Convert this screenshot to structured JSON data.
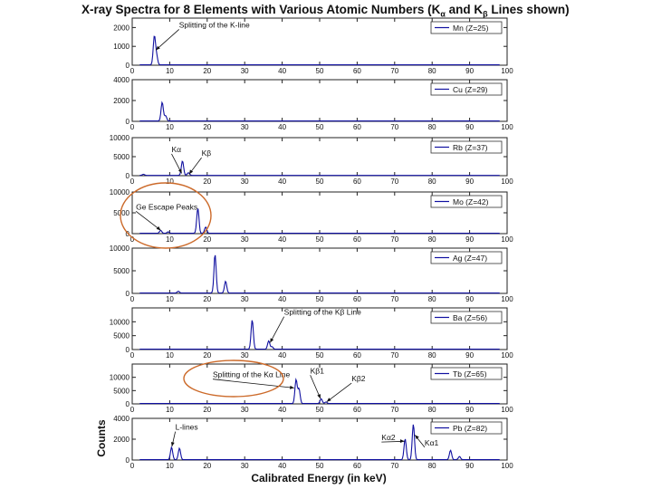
{
  "figure": {
    "title_pre": "X-ray Spectra for 8 Elements with Various Atomic Numbers (K",
    "title_sub1": "α",
    "title_mid": " and K",
    "title_sub2": "β",
    "title_post": " Lines shown)",
    "xlabel": "Calibrated Energy (in keV)",
    "ylabel": "Counts",
    "line_color": "#1010a0",
    "annotation_color": "#cc6a2a"
  },
  "chart_data": [
    {
      "type": "line",
      "legend": "Mn (Z=25)",
      "legend_position": "top-right",
      "xlim": [
        0,
        100
      ],
      "ylim": [
        0,
        2500
      ],
      "xticks": [
        "0",
        "10",
        "20",
        "30",
        "40",
        "50",
        "60",
        "70",
        "80",
        "90",
        "100"
      ],
      "yticks": [
        "0",
        "1000",
        "2000"
      ],
      "peaks": [
        {
          "x": 5.9,
          "y": 1500
        },
        {
          "x": 6.5,
          "y": 450
        }
      ],
      "annotations": [
        {
          "text": "Splitting of the K-line",
          "x": 12.5,
          "y": 2000,
          "arrow_to": [
            6.3,
            800
          ]
        }
      ]
    },
    {
      "type": "line",
      "legend": "Cu (Z=29)",
      "legend_position": "top-right",
      "xlim": [
        0,
        100
      ],
      "ylim": [
        0,
        4000
      ],
      "xticks": [
        "0",
        "10",
        "20",
        "30",
        "40",
        "50",
        "60",
        "70",
        "80",
        "90",
        "100"
      ],
      "yticks": [
        "0",
        "2000",
        "4000"
      ],
      "peaks": [
        {
          "x": 8.0,
          "y": 1800
        },
        {
          "x": 8.9,
          "y": 500
        }
      ],
      "annotations": []
    },
    {
      "type": "line",
      "legend": "Rb (Z=37)",
      "legend_position": "top-right",
      "xlim": [
        0,
        100
      ],
      "ylim": [
        0,
        10000
      ],
      "xticks": [
        "0",
        "10",
        "20",
        "30",
        "40",
        "50",
        "60",
        "70",
        "80",
        "90",
        "100"
      ],
      "yticks": [
        "0",
        "5000",
        "10000"
      ],
      "peaks": [
        {
          "x": 13.4,
          "y": 3800
        },
        {
          "x": 15.0,
          "y": 700
        },
        {
          "x": 3.0,
          "y": 300
        }
      ],
      "annotations": [
        {
          "text": "Kα",
          "x": 10.5,
          "y": 6200,
          "arrow_to": [
            13.2,
            600
          ]
        },
        {
          "text": "Kβ",
          "x": 18.5,
          "y": 5200,
          "arrow_to": [
            15.2,
            400
          ]
        }
      ]
    },
    {
      "type": "line",
      "legend": "Mo (Z=42)",
      "legend_position": "top-right",
      "xlim": [
        0,
        100
      ],
      "ylim": [
        0,
        10000
      ],
      "xticks": [
        "0",
        "10",
        "20",
        "30",
        "40",
        "50",
        "60",
        "70",
        "80",
        "90",
        "100"
      ],
      "yticks": [
        "0",
        "5000",
        "10000"
      ],
      "peaks": [
        {
          "x": 17.5,
          "y": 6000
        },
        {
          "x": 19.6,
          "y": 1500
        },
        {
          "x": 7.6,
          "y": 700
        },
        {
          "x": 9.6,
          "y": 350
        }
      ],
      "annotations": [
        {
          "text": "Ge Escape Peaks",
          "x": 1,
          "y": 5800,
          "arrow_to": [
            7.6,
            800
          ]
        }
      ]
    },
    {
      "type": "line",
      "legend": "Ag (Z=47)",
      "legend_position": "top-right",
      "xlim": [
        0,
        100
      ],
      "ylim": [
        0,
        10000
      ],
      "xticks": [
        "0",
        "10",
        "20",
        "30",
        "40",
        "50",
        "60",
        "70",
        "80",
        "90",
        "100"
      ],
      "yticks": [
        "0",
        "5000",
        "10000"
      ],
      "peaks": [
        {
          "x": 22.1,
          "y": 8500
        },
        {
          "x": 24.9,
          "y": 2600
        },
        {
          "x": 12.3,
          "y": 400
        }
      ],
      "annotations": []
    },
    {
      "type": "line",
      "legend": "Ba (Z=56)",
      "legend_position": "top-right",
      "xlim": [
        0,
        100
      ],
      "ylim": [
        0,
        15000
      ],
      "xticks": [
        "0",
        "10",
        "20",
        "30",
        "40",
        "50",
        "60",
        "70",
        "80",
        "90",
        "100"
      ],
      "yticks": [
        "0",
        "5000",
        "10000"
      ],
      "peaks": [
        {
          "x": 32.0,
          "y": 10500
        },
        {
          "x": 36.4,
          "y": 3000
        },
        {
          "x": 37.3,
          "y": 900
        }
      ],
      "annotations": [
        {
          "text": "Splitting of the Kβ Line",
          "x": 40.5,
          "y": 12500,
          "arrow_to": [
            36.8,
            2500
          ]
        }
      ]
    },
    {
      "type": "line",
      "legend": "Tb (Z=65)",
      "legend_position": "top-right",
      "xlim": [
        0,
        100
      ],
      "ylim": [
        0,
        15000
      ],
      "xticks": [
        "0",
        "10",
        "20",
        "30",
        "40",
        "50",
        "60",
        "70",
        "80",
        "90",
        "100"
      ],
      "yticks": [
        "0",
        "5000",
        "10000"
      ],
      "peaks": [
        {
          "x": 43.7,
          "y": 9000
        },
        {
          "x": 44.5,
          "y": 5500
        },
        {
          "x": 50.4,
          "y": 1800
        },
        {
          "x": 51.7,
          "y": 600
        }
      ],
      "annotations": [
        {
          "text": "Splitting of the Kα Line",
          "x": 21.5,
          "y": 10000,
          "arrow_to": [
            43.2,
            6000
          ]
        },
        {
          "text": "Kβ1",
          "x": 47.5,
          "y": 11500,
          "arrow_to": [
            50.2,
            2000
          ]
        },
        {
          "text": "Kβ2",
          "x": 58.5,
          "y": 8500,
          "arrow_to": [
            51.9,
            800
          ]
        }
      ]
    },
    {
      "type": "line",
      "legend": "Pb (Z=82)",
      "legend_position": "top-right",
      "xlim": [
        0,
        100
      ],
      "ylim": [
        0,
        4000
      ],
      "xticks": [
        "0",
        "10",
        "20",
        "30",
        "40",
        "50",
        "60",
        "70",
        "80",
        "90",
        "100"
      ],
      "yticks": [
        "0",
        "2000",
        "4000"
      ],
      "peaks": [
        {
          "x": 72.8,
          "y": 2000
        },
        {
          "x": 75.0,
          "y": 3400
        },
        {
          "x": 84.9,
          "y": 900
        },
        {
          "x": 87.3,
          "y": 300
        },
        {
          "x": 10.5,
          "y": 1200
        },
        {
          "x": 12.6,
          "y": 1100
        }
      ],
      "annotations": [
        {
          "text": "L-lines",
          "x": 11.5,
          "y": 2900,
          "arrow_to": [
            10.6,
            1300
          ]
        },
        {
          "text": "Kα2",
          "x": 66.5,
          "y": 1900,
          "arrow_to": [
            72.6,
            1800
          ]
        },
        {
          "text": "Kα1",
          "x": 78.0,
          "y": 1400,
          "arrow_to": [
            75.4,
            2400
          ]
        }
      ]
    }
  ]
}
